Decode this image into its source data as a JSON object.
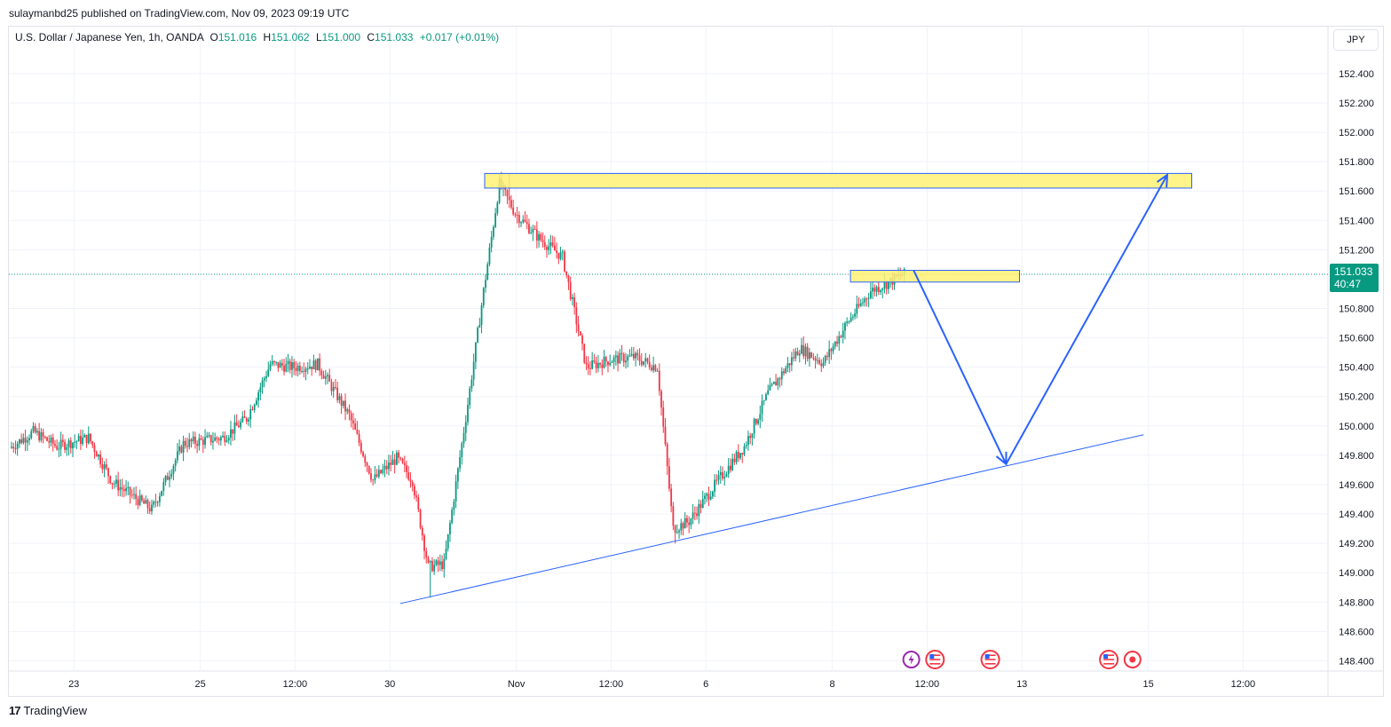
{
  "publisher_line": "sulaymanbd25 published on TradingView.com, Nov 09, 2023 09:19 UTC",
  "legend": {
    "symbol": "U.S. Dollar / Japanese Yen, 1h, OANDA",
    "o_label": "O",
    "o_value": "151.016",
    "h_label": "H",
    "h_value": "151.062",
    "l_label": "L",
    "l_value": "151.000",
    "c_label": "C",
    "c_value": "151.033",
    "change": "+0.017 (+0.01%)"
  },
  "currency_button": "JPY",
  "last_price": {
    "price": "151.033",
    "countdown": "40:47"
  },
  "brand": {
    "logo": "17",
    "name": "TradingView"
  },
  "colors": {
    "up": "#089981",
    "down": "#f23645",
    "zone_fill": "#fff176",
    "drawing": "#2962ff",
    "grid": "#f0f3fa"
  },
  "chart_data": {
    "type": "candlestick",
    "y_ticks": [
      "152.400",
      "152.200",
      "152.000",
      "151.800",
      "151.600",
      "151.400",
      "151.200",
      "150.800",
      "150.600",
      "150.400",
      "150.200",
      "150.000",
      "149.800",
      "149.600",
      "149.400",
      "149.200",
      "149.000",
      "148.800",
      "148.600",
      "148.400"
    ],
    "ylim": [
      148.33,
      152.72
    ],
    "x_ticks": [
      "23",
      "25",
      "12:00",
      "30",
      "Nov",
      "12:00",
      "6",
      "8",
      "12:00",
      "13",
      "15",
      "12:00"
    ],
    "x_tick_index": [
      8,
      24,
      36,
      48,
      64,
      76,
      88,
      104,
      116,
      128,
      144,
      156
    ],
    "bar_count_total": 166,
    "key_points": [
      {
        "bar": 0,
        "price": 149.85
      },
      {
        "bar": 3,
        "price": 149.96
      },
      {
        "bar": 6,
        "price": 149.86
      },
      {
        "bar": 10,
        "price": 149.92
      },
      {
        "bar": 13,
        "price": 149.62
      },
      {
        "bar": 18,
        "price": 149.43
      },
      {
        "bar": 22,
        "price": 149.88
      },
      {
        "bar": 27,
        "price": 149.92
      },
      {
        "bar": 30,
        "price": 150.05
      },
      {
        "bar": 33,
        "price": 150.42
      },
      {
        "bar": 36,
        "price": 150.4
      },
      {
        "bar": 39,
        "price": 150.42
      },
      {
        "bar": 43,
        "price": 150.07
      },
      {
        "bar": 46,
        "price": 149.63
      },
      {
        "bar": 49,
        "price": 149.78
      },
      {
        "bar": 51,
        "price": 149.63
      },
      {
        "bar": 53,
        "price": 149.04
      },
      {
        "bar": 55,
        "price": 149.06
      },
      {
        "bar": 58,
        "price": 150.15
      },
      {
        "bar": 60,
        "price": 150.92
      },
      {
        "bar": 62,
        "price": 151.65
      },
      {
        "bar": 64,
        "price": 151.45
      },
      {
        "bar": 67,
        "price": 151.28
      },
      {
        "bar": 70,
        "price": 151.15
      },
      {
        "bar": 73,
        "price": 150.4
      },
      {
        "bar": 76,
        "price": 150.45
      },
      {
        "bar": 79,
        "price": 150.47
      },
      {
        "bar": 82,
        "price": 150.4
      },
      {
        "bar": 84,
        "price": 149.3
      },
      {
        "bar": 86,
        "price": 149.35
      },
      {
        "bar": 90,
        "price": 149.65
      },
      {
        "bar": 93,
        "price": 149.86
      },
      {
        "bar": 96,
        "price": 150.22
      },
      {
        "bar": 100,
        "price": 150.53
      },
      {
        "bar": 103,
        "price": 150.43
      },
      {
        "bar": 106,
        "price": 150.7
      },
      {
        "bar": 109,
        "price": 150.92
      },
      {
        "bar": 111,
        "price": 150.97
      },
      {
        "bar": 113,
        "price": 151.03
      }
    ],
    "extremes": [
      {
        "bar": 63,
        "high": 151.72
      },
      {
        "bar": 53,
        "low": 148.83
      },
      {
        "bar": 84,
        "low": 149.2
      },
      {
        "bar": 113,
        "high": 151.08
      }
    ],
    "drawings": {
      "trendline": {
        "from": {
          "bar": 49.3,
          "price": 148.79
        },
        "to": {
          "bar": 143.4,
          "price": 149.94
        }
      },
      "resistance_zone_upper": {
        "bar_from": 60,
        "bar_to": 149.5,
        "price_top": 151.72,
        "price_bottom": 151.62
      },
      "resistance_zone_lower": {
        "bar_from": 106.3,
        "bar_to": 127.7,
        "price_top": 151.06,
        "price_bottom": 150.98
      },
      "arrow_down": {
        "from": {
          "bar": 114.3,
          "price": 151.06
        },
        "to": {
          "bar": 126,
          "price": 149.74
        }
      },
      "arrow_up": {
        "from": {
          "bar": 126,
          "price": 149.74
        },
        "to": {
          "bar": 146.4,
          "price": 151.71
        }
      }
    },
    "event_icons": [
      {
        "bar": 114,
        "icon": "lightning-icon"
      },
      {
        "bar": 117,
        "icon": "us-flag-icon"
      },
      {
        "bar": 124,
        "icon": "us-flag-icon"
      },
      {
        "bar": 139,
        "icon": "us-flag-icon"
      },
      {
        "bar": 142,
        "icon": "red-dot-icon"
      }
    ]
  }
}
